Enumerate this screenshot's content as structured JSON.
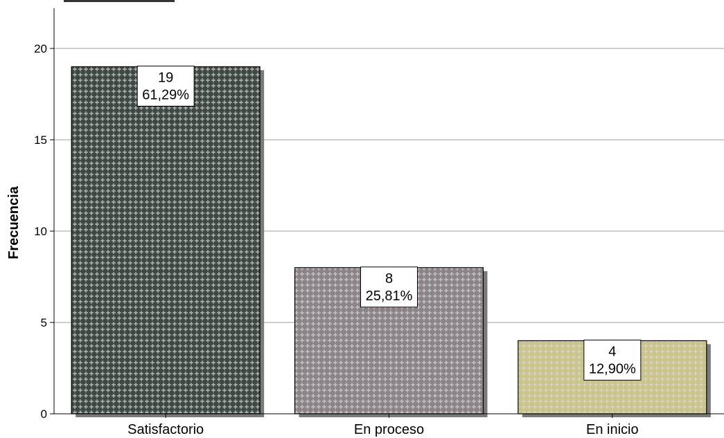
{
  "chart_data": {
    "type": "bar",
    "title": "",
    "xlabel": "",
    "ylabel": "Frecuencia",
    "categories": [
      "Satisfactorio",
      "En proceso",
      "En inicio"
    ],
    "values": [
      19,
      8,
      4
    ],
    "percent_labels": [
      "61,29%",
      "25,81%",
      "12,90%"
    ],
    "value_labels": [
      "19",
      "8",
      "4"
    ],
    "ylim": [
      0,
      22
    ],
    "yticks": [
      0,
      5,
      10,
      15,
      20
    ],
    "ytick_labels": [
      "0",
      "5",
      "10",
      "15",
      "20"
    ],
    "grid": true,
    "legend": "none",
    "bar_colors": [
      "#3f4a45",
      "#8c8489",
      "#c9c48a"
    ],
    "pattern_color": "#d8d8d8"
  }
}
